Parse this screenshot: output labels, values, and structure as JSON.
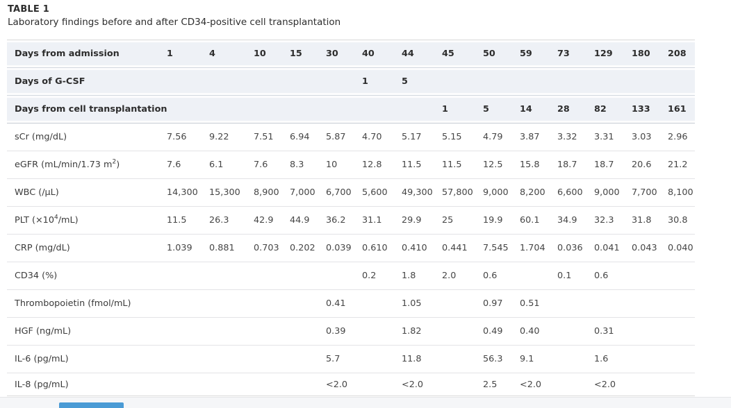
{
  "page": {
    "title": "TABLE 1",
    "subtitle": "Laboratory findings before and after CD34-positive cell transplantation"
  },
  "table": {
    "header_rows": [
      {
        "label": "Days from admission",
        "values": [
          "1",
          "4",
          "10",
          "15",
          "30",
          "40",
          "44",
          "45",
          "50",
          "59",
          "73",
          "129",
          "180",
          "208"
        ]
      },
      {
        "label": "Days of G-CSF",
        "values": [
          "",
          "",
          "",
          "",
          "",
          "1",
          "5",
          "",
          "",
          "",
          "",
          "",
          "",
          ""
        ]
      },
      {
        "label": "Days from cell transplantation",
        "values": [
          "",
          "",
          "",
          "",
          "",
          "",
          "",
          "1",
          "5",
          "14",
          "28",
          "82",
          "133",
          "161"
        ]
      }
    ],
    "rows": [
      {
        "label_pre": "sCr (mg/dL)",
        "label_sup": "",
        "label_post": "",
        "values": [
          "7.56",
          "9.22",
          "7.51",
          "6.94",
          "5.87",
          "4.70",
          "5.17",
          "5.15",
          "4.79",
          "3.87",
          "3.32",
          "3.31",
          "3.03",
          "2.96"
        ]
      },
      {
        "label_pre": "eGFR (mL/min/1.73 m",
        "label_sup": "2",
        "label_post": ")",
        "values": [
          "7.6",
          "6.1",
          "7.6",
          "8.3",
          "10",
          "12.8",
          "11.5",
          "11.5",
          "12.5",
          "15.8",
          "18.7",
          "18.7",
          "20.6",
          "21.2"
        ]
      },
      {
        "label_pre": "WBC (/µL)",
        "label_sup": "",
        "label_post": "",
        "values": [
          "14,300",
          "15,300",
          "8,900",
          "7,000",
          "6,700",
          "5,600",
          "49,300",
          "57,800",
          "9,000",
          "8,200",
          "6,600",
          "9,000",
          "7,700",
          "8,100"
        ]
      },
      {
        "label_pre": "PLT (×10",
        "label_sup": "4",
        "label_post": "/mL)",
        "values": [
          "11.5",
          "26.3",
          "42.9",
          "44.9",
          "36.2",
          "31.1",
          "29.9",
          "25",
          "19.9",
          "60.1",
          "34.9",
          "32.3",
          "31.8",
          "30.8"
        ]
      },
      {
        "label_pre": "CRP (mg/dL)",
        "label_sup": "",
        "label_post": "",
        "values": [
          "1.039",
          "0.881",
          "0.703",
          "0.202",
          "0.039",
          "0.610",
          "0.410",
          "0.441",
          "7.545",
          "1.704",
          "0.036",
          "0.041",
          "0.043",
          "0.040"
        ]
      },
      {
        "label_pre": "CD34 (%)",
        "label_sup": "",
        "label_post": "",
        "values": [
          "",
          "",
          "",
          "",
          "",
          "0.2",
          "1.8",
          "2.0",
          "0.6",
          "",
          "0.1",
          "0.6",
          "",
          ""
        ]
      },
      {
        "label_pre": "Thrombopoietin (fmol/mL)",
        "label_sup": "",
        "label_post": "",
        "values": [
          "",
          "",
          "",
          "",
          "0.41",
          "",
          "1.05",
          "",
          "0.97",
          "0.51",
          "",
          "",
          "",
          ""
        ]
      },
      {
        "label_pre": "HGF (ng/mL)",
        "label_sup": "",
        "label_post": "",
        "values": [
          "",
          "",
          "",
          "",
          "0.39",
          "",
          "1.82",
          "",
          "0.49",
          "0.40",
          "",
          "0.31",
          "",
          ""
        ]
      },
      {
        "label_pre": "IL-6 (pg/mL)",
        "label_sup": "",
        "label_post": "",
        "values": [
          "",
          "",
          "",
          "",
          "5.7",
          "",
          "11.8",
          "",
          "56.3",
          "9.1",
          "",
          "1.6",
          "",
          ""
        ]
      },
      {
        "label_pre": "IL-8 (pg/mL)",
        "label_sup": "",
        "label_post": "",
        "values": [
          "",
          "",
          "",
          "",
          "<2.0",
          "",
          "<2.0",
          "",
          "2.5",
          "<2.0",
          "",
          "<2.0",
          "",
          ""
        ]
      }
    ]
  },
  "colors": {
    "header_bg": "#eef1f6",
    "row_border": "#e3e3e6",
    "strip_bg": "#f5f6f8",
    "accent_blue": "#4a9bd5",
    "text_dark": "#2d2d2d",
    "text_body": "#454545"
  }
}
